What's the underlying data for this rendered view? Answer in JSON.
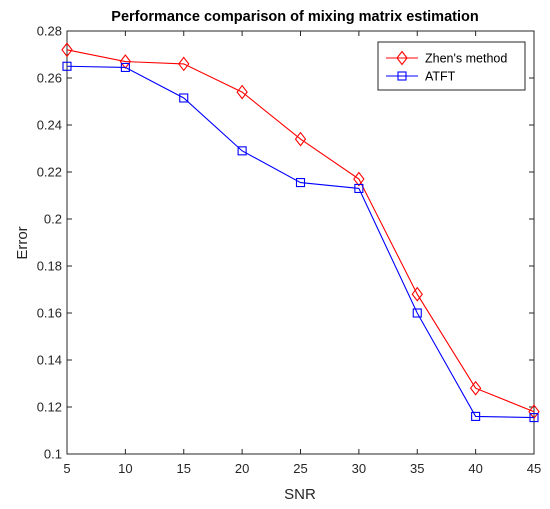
{
  "chart_data": {
    "type": "line",
    "title": "Performance comparison of mixing matrix estimation",
    "xlabel": "SNR",
    "ylabel": "Error",
    "x": [
      5,
      10,
      15,
      20,
      25,
      30,
      35,
      40,
      45
    ],
    "xlim": [
      5,
      45
    ],
    "ylim": [
      0.1,
      0.28
    ],
    "xticks": [
      "5",
      "10",
      "15",
      "20",
      "25",
      "30",
      "35",
      "40",
      "45"
    ],
    "yticks": [
      "0.1",
      "0.12",
      "0.14",
      "0.16",
      "0.18",
      "0.2",
      "0.22",
      "0.24",
      "0.26",
      "0.28"
    ],
    "grid": false,
    "legend_position": "top-right",
    "series": [
      {
        "name": "Zhen's method",
        "color": "#ff0000",
        "marker": "diamond",
        "values": [
          0.272,
          0.267,
          0.266,
          0.254,
          0.234,
          0.217,
          0.168,
          0.128,
          0.118
        ]
      },
      {
        "name": "ATFT",
        "color": "#0000ff",
        "marker": "square",
        "values": [
          0.265,
          0.2645,
          0.2515,
          0.229,
          0.2155,
          0.213,
          0.16,
          0.116,
          0.1155
        ]
      }
    ]
  }
}
